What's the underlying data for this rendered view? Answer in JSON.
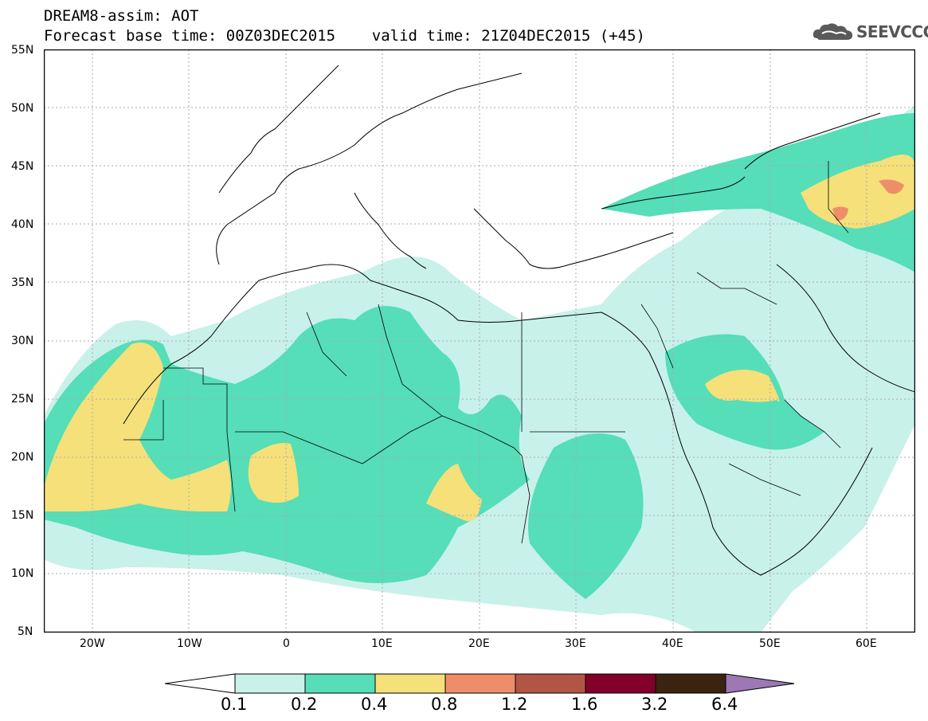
{
  "header": {
    "line1": "DREAM8-assim: AOT",
    "line2": "Forecast base time: 00Z03DEC2015    valid time: 21Z04DEC2015 (+45)"
  },
  "logo": {
    "text": "SEEVCCC",
    "icon": "cloud-icon"
  },
  "map": {
    "lat_labels": [
      "55N",
      "50N",
      "45N",
      "40N",
      "35N",
      "30N",
      "25N",
      "20N",
      "15N",
      "10N",
      "5N"
    ],
    "lat_values": [
      55,
      50,
      45,
      40,
      35,
      30,
      25,
      20,
      15,
      10,
      5
    ],
    "lon_labels": [
      "20W",
      "10W",
      "0",
      "10E",
      "20E",
      "30E",
      "40E",
      "50E",
      "60E"
    ],
    "lon_values": [
      -20,
      -10,
      0,
      10,
      20,
      30,
      40,
      50,
      60
    ],
    "lon_range": [
      -25,
      65
    ],
    "lat_range": [
      5,
      55
    ]
  },
  "colorbar": {
    "labels": [
      "0.1",
      "0.2",
      "0.4",
      "0.8",
      "1.2",
      "1.6",
      "3.2",
      "6.4"
    ],
    "colors": [
      "#ffffff",
      "#c8f1ea",
      "#55deb7",
      "#f5e07a",
      "#ee8e68",
      "#b35545",
      "#82002a",
      "#3a2410",
      "#9d78b4"
    ]
  },
  "colors": {
    "aot_01": "#c8f1ea",
    "aot_02": "#55deb7",
    "aot_04": "#f5e07a",
    "aot_08": "#ee8e68",
    "grid": "#aaaaaa",
    "border": "#000000"
  }
}
